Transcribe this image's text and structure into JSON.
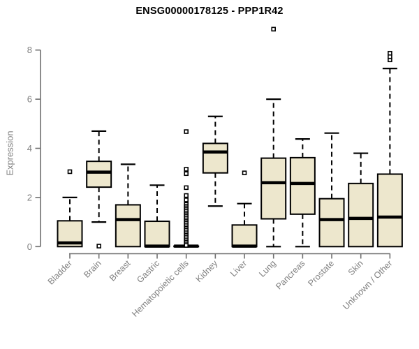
{
  "chart_data": {
    "type": "boxplot",
    "title": "ENSG00000178125 - PPP1R42",
    "ylabel": "Expression",
    "xlabel": "",
    "ylim": [
      0,
      8
    ],
    "yticks": [
      0,
      2,
      4,
      6,
      8
    ],
    "grid": false,
    "legend": "none",
    "categories": [
      "Bladder",
      "Brain",
      "Breast",
      "Gastric",
      "Hematopoietic cells",
      "Kidney",
      "Liver",
      "Lung",
      "Pancreas",
      "Prostate",
      "Skin",
      "Unknown / Other"
    ],
    "series": [
      {
        "category": "Bladder",
        "whisker_low": 0,
        "q1": 0,
        "median": 0.15,
        "q3": 1.05,
        "whisker_high": 2.0,
        "outliers": [
          3.05
        ]
      },
      {
        "category": "Brain",
        "whisker_low": 1.0,
        "q1": 2.42,
        "median": 3.03,
        "q3": 3.47,
        "whisker_high": 4.7,
        "outliers": [
          0.02
        ]
      },
      {
        "category": "Breast",
        "whisker_low": 0,
        "q1": 0,
        "median": 1.1,
        "q3": 1.7,
        "whisker_high": 3.35,
        "outliers": []
      },
      {
        "category": "Gastric",
        "whisker_low": 0,
        "q1": 0,
        "median": 0.02,
        "q3": 1.03,
        "whisker_high": 2.5,
        "outliers": []
      },
      {
        "category": "Hematopoietic cells",
        "whisker_low": 0,
        "q1": 0,
        "median": 0.02,
        "q3": 0.02,
        "whisker_high": 0.02,
        "outliers": [
          4.68,
          3.15,
          2.97,
          2.4,
          2.08,
          1.9,
          1.72,
          1.65,
          1.58,
          1.51,
          1.44,
          1.37,
          1.3,
          1.23,
          1.16,
          1.09,
          1.02,
          0.95,
          0.88,
          0.81,
          0.74,
          0.67,
          0.6,
          0.53,
          0.46,
          0.39,
          0.32,
          0.25,
          0.18,
          0.11,
          0.05
        ]
      },
      {
        "category": "Kidney",
        "whisker_low": 1.65,
        "q1": 3.0,
        "median": 3.85,
        "q3": 4.2,
        "whisker_high": 5.3,
        "outliers": []
      },
      {
        "category": "Liver",
        "whisker_low": 0,
        "q1": 0,
        "median": 0.02,
        "q3": 0.88,
        "whisker_high": 1.75,
        "outliers": [
          3.0
        ]
      },
      {
        "category": "Lung",
        "whisker_low": 0,
        "q1": 1.13,
        "median": 2.6,
        "q3": 3.6,
        "whisker_high": 6.0,
        "outliers": [
          8.85
        ]
      },
      {
        "category": "Pancreas",
        "whisker_low": 0,
        "q1": 1.32,
        "median": 2.57,
        "q3": 3.62,
        "whisker_high": 4.38,
        "outliers": []
      },
      {
        "category": "Prostate",
        "whisker_low": 0,
        "q1": 0,
        "median": 1.1,
        "q3": 1.95,
        "whisker_high": 4.62,
        "outliers": []
      },
      {
        "category": "Skin",
        "whisker_low": 0,
        "q1": 0,
        "median": 1.15,
        "q3": 2.57,
        "whisker_high": 3.8,
        "outliers": []
      },
      {
        "category": "Unknown / Other",
        "whisker_low": 0,
        "q1": 0,
        "median": 1.2,
        "q3": 2.95,
        "whisker_high": 7.25,
        "outliers": [
          7.6,
          7.73,
          7.87
        ]
      }
    ],
    "colors": {
      "box_fill": "#EDE7CD",
      "box_border": "#000000",
      "median": "#000000",
      "whisker": "#000000",
      "outlier_stroke": "#000000",
      "outlier_fill": "#FFFFFF",
      "axis_line": "#707070",
      "tick_label": "#808080",
      "title_color": "#000000",
      "background": "#FFFFFF"
    }
  }
}
